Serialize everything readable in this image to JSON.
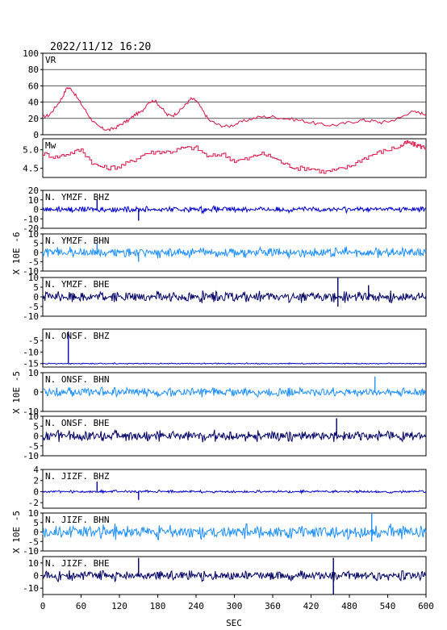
{
  "header": {
    "datetime": "2022/11/12  16:20"
  },
  "x_axis": {
    "label": "SEC",
    "ticks": [
      "0",
      "60",
      "120",
      "180",
      "240",
      "300",
      "360",
      "420",
      "480",
      "540",
      "600"
    ],
    "range": [
      0,
      600
    ]
  },
  "colors": {
    "vr": "#dd1144",
    "mw": "#dd1144",
    "dark_blue": "#000066",
    "mid_blue": "#0000cc",
    "light_blue": "#1e90ff",
    "frame": "#000000"
  },
  "chart_data": {
    "type": "line",
    "panels": [
      {
        "id": "vr",
        "label": "VR",
        "ticks": [
          "100",
          "80",
          "60",
          "40",
          "20",
          "0"
        ],
        "ylim": [
          0,
          100
        ],
        "grid": true,
        "series_color": "#dd1144",
        "x": [
          0,
          10,
          20,
          30,
          38,
          45,
          55,
          65,
          75,
          85,
          95,
          105,
          115,
          125,
          135,
          145,
          155,
          165,
          175,
          185,
          195,
          205,
          215,
          225,
          232,
          240,
          250,
          260,
          275,
          290,
          305,
          320,
          340,
          360,
          380,
          400,
          420,
          440,
          460,
          480,
          500,
          515,
          530,
          545,
          560,
          575,
          590,
          600
        ],
        "y": [
          22,
          24,
          34,
          45,
          58,
          56,
          44,
          32,
          20,
          11,
          7,
          6,
          9,
          14,
          18,
          25,
          28,
          40,
          42,
          34,
          24,
          24,
          30,
          38,
          44,
          42,
          30,
          18,
          12,
          10,
          14,
          18,
          22,
          22,
          20,
          18,
          15,
          12,
          12,
          15,
          18,
          17,
          15,
          17,
          21,
          28,
          27,
          25
        ]
      },
      {
        "id": "mw",
        "label": "Mw",
        "ticks": [
          "5.0",
          "4.5"
        ],
        "ylim": [
          4.25,
          5.3
        ],
        "grid": false,
        "series_color": "#dd1144",
        "x": [
          0,
          20,
          40,
          60,
          80,
          100,
          120,
          140,
          160,
          180,
          200,
          220,
          240,
          260,
          280,
          300,
          320,
          340,
          360,
          380,
          400,
          420,
          440,
          460,
          480,
          500,
          520,
          540,
          560,
          570,
          580,
          590,
          600
        ],
        "y": [
          4.9,
          4.8,
          4.9,
          5.0,
          4.6,
          4.5,
          4.55,
          4.7,
          4.9,
          4.95,
          4.95,
          5.05,
          5.05,
          4.8,
          4.9,
          4.7,
          4.75,
          4.9,
          4.8,
          4.6,
          4.5,
          4.5,
          4.4,
          4.45,
          4.55,
          4.75,
          4.9,
          5.0,
          5.1,
          5.2,
          5.15,
          5.1,
          5.05
        ]
      },
      {
        "id": "ymzf-bhz",
        "label": "N. YMZF. BHZ",
        "ticks": [
          "20",
          "10",
          "0",
          "-10",
          "-20"
        ],
        "ylim": [
          -20,
          20
        ],
        "color_key": "mid_blue",
        "amplitude": 4,
        "spikes": [
          [
            85,
            10
          ],
          [
            150,
            -12
          ]
        ]
      },
      {
        "id": "ymzf-bhn",
        "label": "N. YMZF. BHN",
        "ticks": [
          "10",
          "5",
          "0",
          "-5",
          "-10"
        ],
        "ylim": [
          -10,
          10
        ],
        "color_key": "light_blue",
        "amplitude": 3.5,
        "spikes": [
          [
            85,
            5
          ],
          [
            150,
            -5
          ]
        ]
      },
      {
        "id": "ymzf-bhe",
        "label": "N. YMZF. BHE",
        "ticks": [
          "10",
          "5",
          "0",
          "-5",
          "-10"
        ],
        "ylim": [
          -10,
          10
        ],
        "color_key": "dark_blue",
        "amplitude": 3.5,
        "spikes": [
          [
            462,
            10
          ],
          [
            462,
            -5
          ],
          [
            510,
            6
          ]
        ]
      },
      {
        "id": "onsf-bhz",
        "label": "N. ONSF. BHZ",
        "ticks": [
          "-5",
          "-10",
          "-15"
        ],
        "ylim": [
          -16.5,
          0
        ],
        "color_key": "mid_blue",
        "amplitude": 0.3,
        "baseline": -15,
        "spikes": [
          [
            40,
            -1
          ]
        ]
      },
      {
        "id": "onsf-bhn",
        "label": "N. ONSF. BHN",
        "ticks": [
          "10",
          "0",
          "-10"
        ],
        "ylim": [
          -10,
          10
        ],
        "color_key": "light_blue",
        "amplitude": 3,
        "spikes": [
          [
            520,
            8
          ]
        ]
      },
      {
        "id": "onsf-bhe",
        "label": "N. ONSF. BHE",
        "ticks": [
          "10",
          "5",
          "0",
          "-5",
          "-10"
        ],
        "ylim": [
          -10,
          10
        ],
        "color_key": "dark_blue",
        "amplitude": 3.5,
        "spikes": [
          [
            460,
            9
          ]
        ]
      },
      {
        "id": "jizf-bhz",
        "label": "N. JIZF. BHZ",
        "ticks": [
          "4",
          "2",
          "0",
          "-2"
        ],
        "ylim": [
          -3,
          4
        ],
        "color_key": "mid_blue",
        "amplitude": 0.3,
        "spikes": [
          [
            85,
            1.8
          ],
          [
            150,
            -1.5
          ]
        ]
      },
      {
        "id": "jizf-bhn",
        "label": "N. JIZF. BHN",
        "ticks": [
          "10",
          "5",
          "0",
          "-5",
          "-10"
        ],
        "ylim": [
          -10,
          10
        ],
        "color_key": "light_blue",
        "amplitude": 4.5,
        "spikes": [
          [
            515,
            10
          ],
          [
            515,
            -5
          ]
        ]
      },
      {
        "id": "jizf-bhe",
        "label": "N. JIZF. BHE",
        "ticks": [
          "10",
          "0",
          "-10"
        ],
        "ylim": [
          -15,
          15
        ],
        "color_key": "dark_blue",
        "amplitude": 5,
        "spikes": [
          [
            150,
            14
          ],
          [
            455,
            14
          ],
          [
            455,
            -15
          ]
        ]
      }
    ],
    "y_axis_labels": [
      {
        "text": "X 10E -6",
        "panels": [
          "ymzf-bhz",
          "ymzf-bhn",
          "ymzf-bhe"
        ]
      },
      {
        "text": "X 10E -5",
        "panels": [
          "onsf-bhz",
          "onsf-bhn",
          "onsf-bhe"
        ]
      },
      {
        "text": "X 10E -5",
        "panels": [
          "jizf-bhz",
          "jizf-bhn",
          "jizf-bhe"
        ]
      }
    ]
  }
}
